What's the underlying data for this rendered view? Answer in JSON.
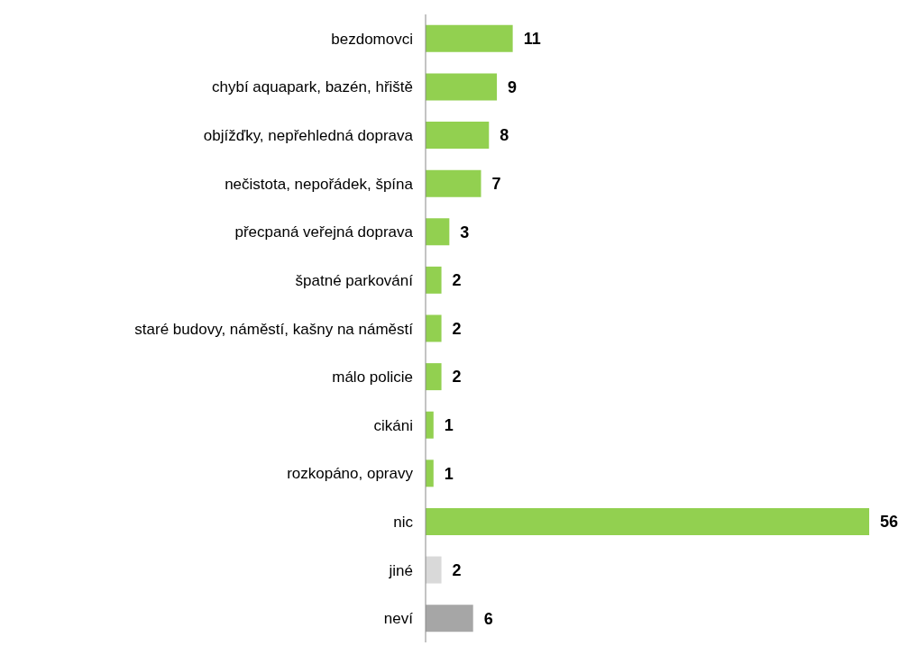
{
  "chart_data": {
    "type": "bar",
    "orientation": "horizontal",
    "categories": [
      "bezdomovci",
      "chybí aquapark, bazén, hřiště",
      "objížďky, nepřehledná doprava",
      "nečistota, nepořádek, špína",
      "přecpaná veřejná doprava",
      "špatné parkování",
      "staré budovy, náměstí, kašny na náměstí",
      "málo policie",
      "cikáni",
      "rozkopáno, opravy",
      "nic",
      "jiné",
      "neví"
    ],
    "values": [
      11,
      9,
      8,
      7,
      3,
      2,
      2,
      2,
      1,
      1,
      56,
      2,
      6
    ],
    "colors": [
      "#92d050",
      "#92d050",
      "#92d050",
      "#92d050",
      "#92d050",
      "#92d050",
      "#92d050",
      "#92d050",
      "#92d050",
      "#92d050",
      "#92d050",
      "#d9d9d9",
      "#a6a6a6"
    ],
    "data_labels": true
  }
}
